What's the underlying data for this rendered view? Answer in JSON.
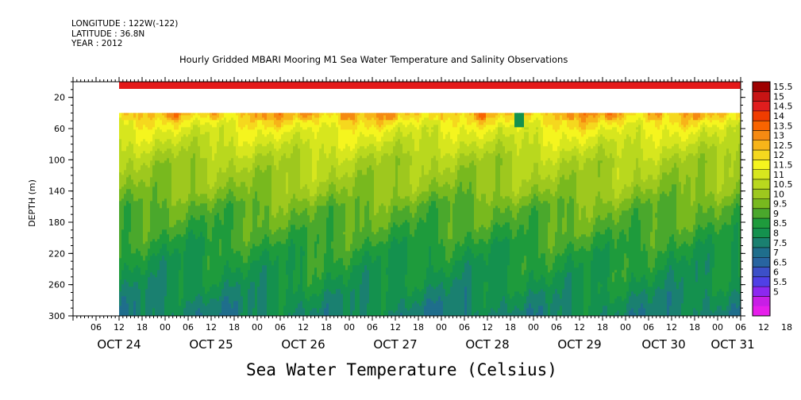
{
  "header": {
    "longitude": "LONGITUDE : 122W(-122)",
    "latitude": "LATITUDE : 36.8N",
    "year": "YEAR : 2012"
  },
  "chart_data": {
    "type": "heatmap",
    "title": "Hourly Gridded MBARI Mooring M1 Sea Water Temperature and Salinity Observations",
    "ylabel": "DEPTH (m)",
    "colorbar_title": "Sea Water Temperature (Celsius)",
    "y_axis": {
      "reversed": true,
      "ylim": [
        300,
        0
      ],
      "tick_labels": [
        "20",
        "60",
        "100",
        "140",
        "180",
        "220",
        "260",
        "300"
      ]
    },
    "x_axis": {
      "hour_labels": [
        "06",
        "12",
        "18",
        "00",
        "06",
        "12",
        "18",
        "00",
        "06",
        "12",
        "18",
        "00",
        "06",
        "12",
        "18",
        "00",
        "06",
        "12",
        "18",
        "00",
        "06",
        "12",
        "18",
        "00",
        "06",
        "12",
        "18",
        "00",
        "06",
        "12",
        "18",
        "00"
      ],
      "day_labels": [
        "OCT 24",
        "OCT 25",
        "OCT 26",
        "OCT 27",
        "OCT 28",
        "OCT 29",
        "OCT 30",
        "OCT 31"
      ],
      "start": "Oct 24 2012 00:00",
      "end": "Oct 31 2012 06:00"
    },
    "data_start": "Oct 24 2012 12:00",
    "colorbar": {
      "levels": [
        "15.5",
        "15",
        "14.5",
        "14",
        "13.5",
        "13",
        "12.5",
        "12",
        "11.5",
        "11",
        "10.5",
        "10",
        "9.5",
        "9",
        "8.5",
        "8",
        "7.5",
        "7",
        "6.5",
        "6",
        "5.5",
        "5"
      ],
      "colors": [
        "#9e0000",
        "#c81414",
        "#e01e1e",
        "#f03c00",
        "#f86400",
        "#f58a12",
        "#f7b419",
        "#f5d81e",
        "#f5f51e",
        "#d7e61e",
        "#b9d81e",
        "#9ec81e",
        "#78b91e",
        "#4aa82c",
        "#1e9b3c",
        "#14914e",
        "#1a8070",
        "#1f6e8c",
        "#2864a0",
        "#3c50c8",
        "#5040e6",
        "#8c28f0",
        "#c81ee6",
        "#e61eeb"
      ]
    },
    "series": [
      {
        "name": "",
        "depth_m": [
          6,
          40,
          50,
          60,
          80,
          100,
          120,
          140,
          160,
          180,
          200,
          220,
          240,
          260,
          280,
          300
        ],
        "temperature_c": [
          14.7,
          12.5,
          12.0,
          11.5,
          11.0,
          10.5,
          10.3,
          10.0,
          9.5,
          9.3,
          9.0,
          8.7,
          8.5,
          8.3,
          8.0,
          7.8
        ]
      }
    ]
  }
}
